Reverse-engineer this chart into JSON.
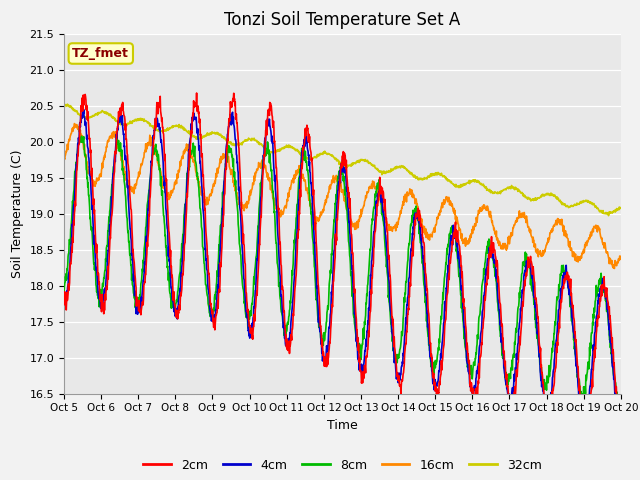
{
  "title": "Tonzi Soil Temperature Set A",
  "xlabel": "Time",
  "ylabel": "Soil Temperature (C)",
  "ylim": [
    16.5,
    21.5
  ],
  "yticks": [
    16.5,
    17.0,
    17.5,
    18.0,
    18.5,
    19.0,
    19.5,
    20.0,
    20.5,
    21.0,
    21.5
  ],
  "xtick_labels": [
    "Oct 5",
    "Oct 6",
    "Oct 7",
    "Oct 8",
    "Oct 9",
    "Oct 10",
    "Oct 11",
    "Oct 12",
    "Oct 13",
    "Oct 14",
    "Oct 15",
    "Oct 16",
    "Oct 17",
    "Oct 18",
    "Oct 19",
    "Oct 20"
  ],
  "annotation_text": "TZ_fmet",
  "annotation_color": "#8B0000",
  "annotation_bg": "#FFFFCC",
  "annotation_border": "#CCCC00",
  "series": {
    "2cm": {
      "color": "#FF0000",
      "linewidth": 1.2
    },
    "4cm": {
      "color": "#0000CC",
      "linewidth": 1.2
    },
    "8cm": {
      "color": "#00BB00",
      "linewidth": 1.2
    },
    "16cm": {
      "color": "#FF8800",
      "linewidth": 1.2
    },
    "32cm": {
      "color": "#CCCC00",
      "linewidth": 1.2
    }
  },
  "legend_entries": [
    "2cm",
    "4cm",
    "8cm",
    "16cm",
    "32cm"
  ],
  "legend_colors": [
    "#FF0000",
    "#0000CC",
    "#00BB00",
    "#FF8800",
    "#CCCC00"
  ],
  "bg_color": "#E8E8E8",
  "title_fontsize": 12
}
